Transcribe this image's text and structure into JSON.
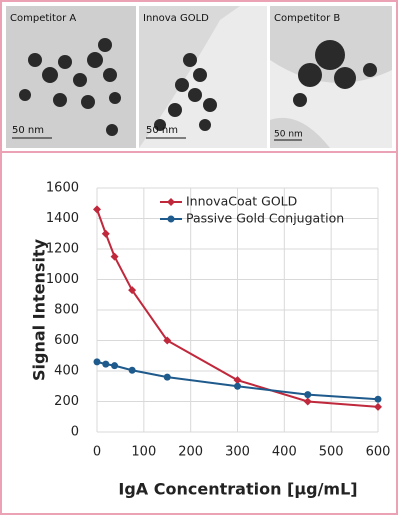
{
  "panels": [
    {
      "label": "Competitor A",
      "scale": "50 nm"
    },
    {
      "label": "Innova GOLD",
      "scale": "50 nm"
    },
    {
      "label": "Competitor B",
      "scale": "50 nm"
    }
  ],
  "chart_data": {
    "type": "line",
    "x_label": "IgA Concentration [μg/mL]",
    "y_label": "Signal Intensity",
    "x": [
      0,
      18.75,
      37.5,
      75,
      150,
      300,
      450,
      600
    ],
    "series": [
      {
        "name": "InnovaCoat GOLD",
        "color": "#c0283c",
        "marker": "diamond",
        "values": [
          1460,
          1300,
          1150,
          930,
          600,
          340,
          200,
          165
        ]
      },
      {
        "name": "Passive Gold Conjugation",
        "color": "#1f5a8c",
        "marker": "circle",
        "values": [
          460,
          445,
          435,
          405,
          360,
          300,
          245,
          215
        ]
      }
    ],
    "xlim": [
      0,
      600
    ],
    "xticks": [
      0,
      100,
      200,
      300,
      400,
      500,
      600
    ],
    "ylim": [
      0,
      1600
    ],
    "yticks": [
      0,
      200,
      400,
      600,
      800,
      1000,
      1200,
      1400,
      1600
    ],
    "grid": true,
    "legend": "top-right"
  }
}
